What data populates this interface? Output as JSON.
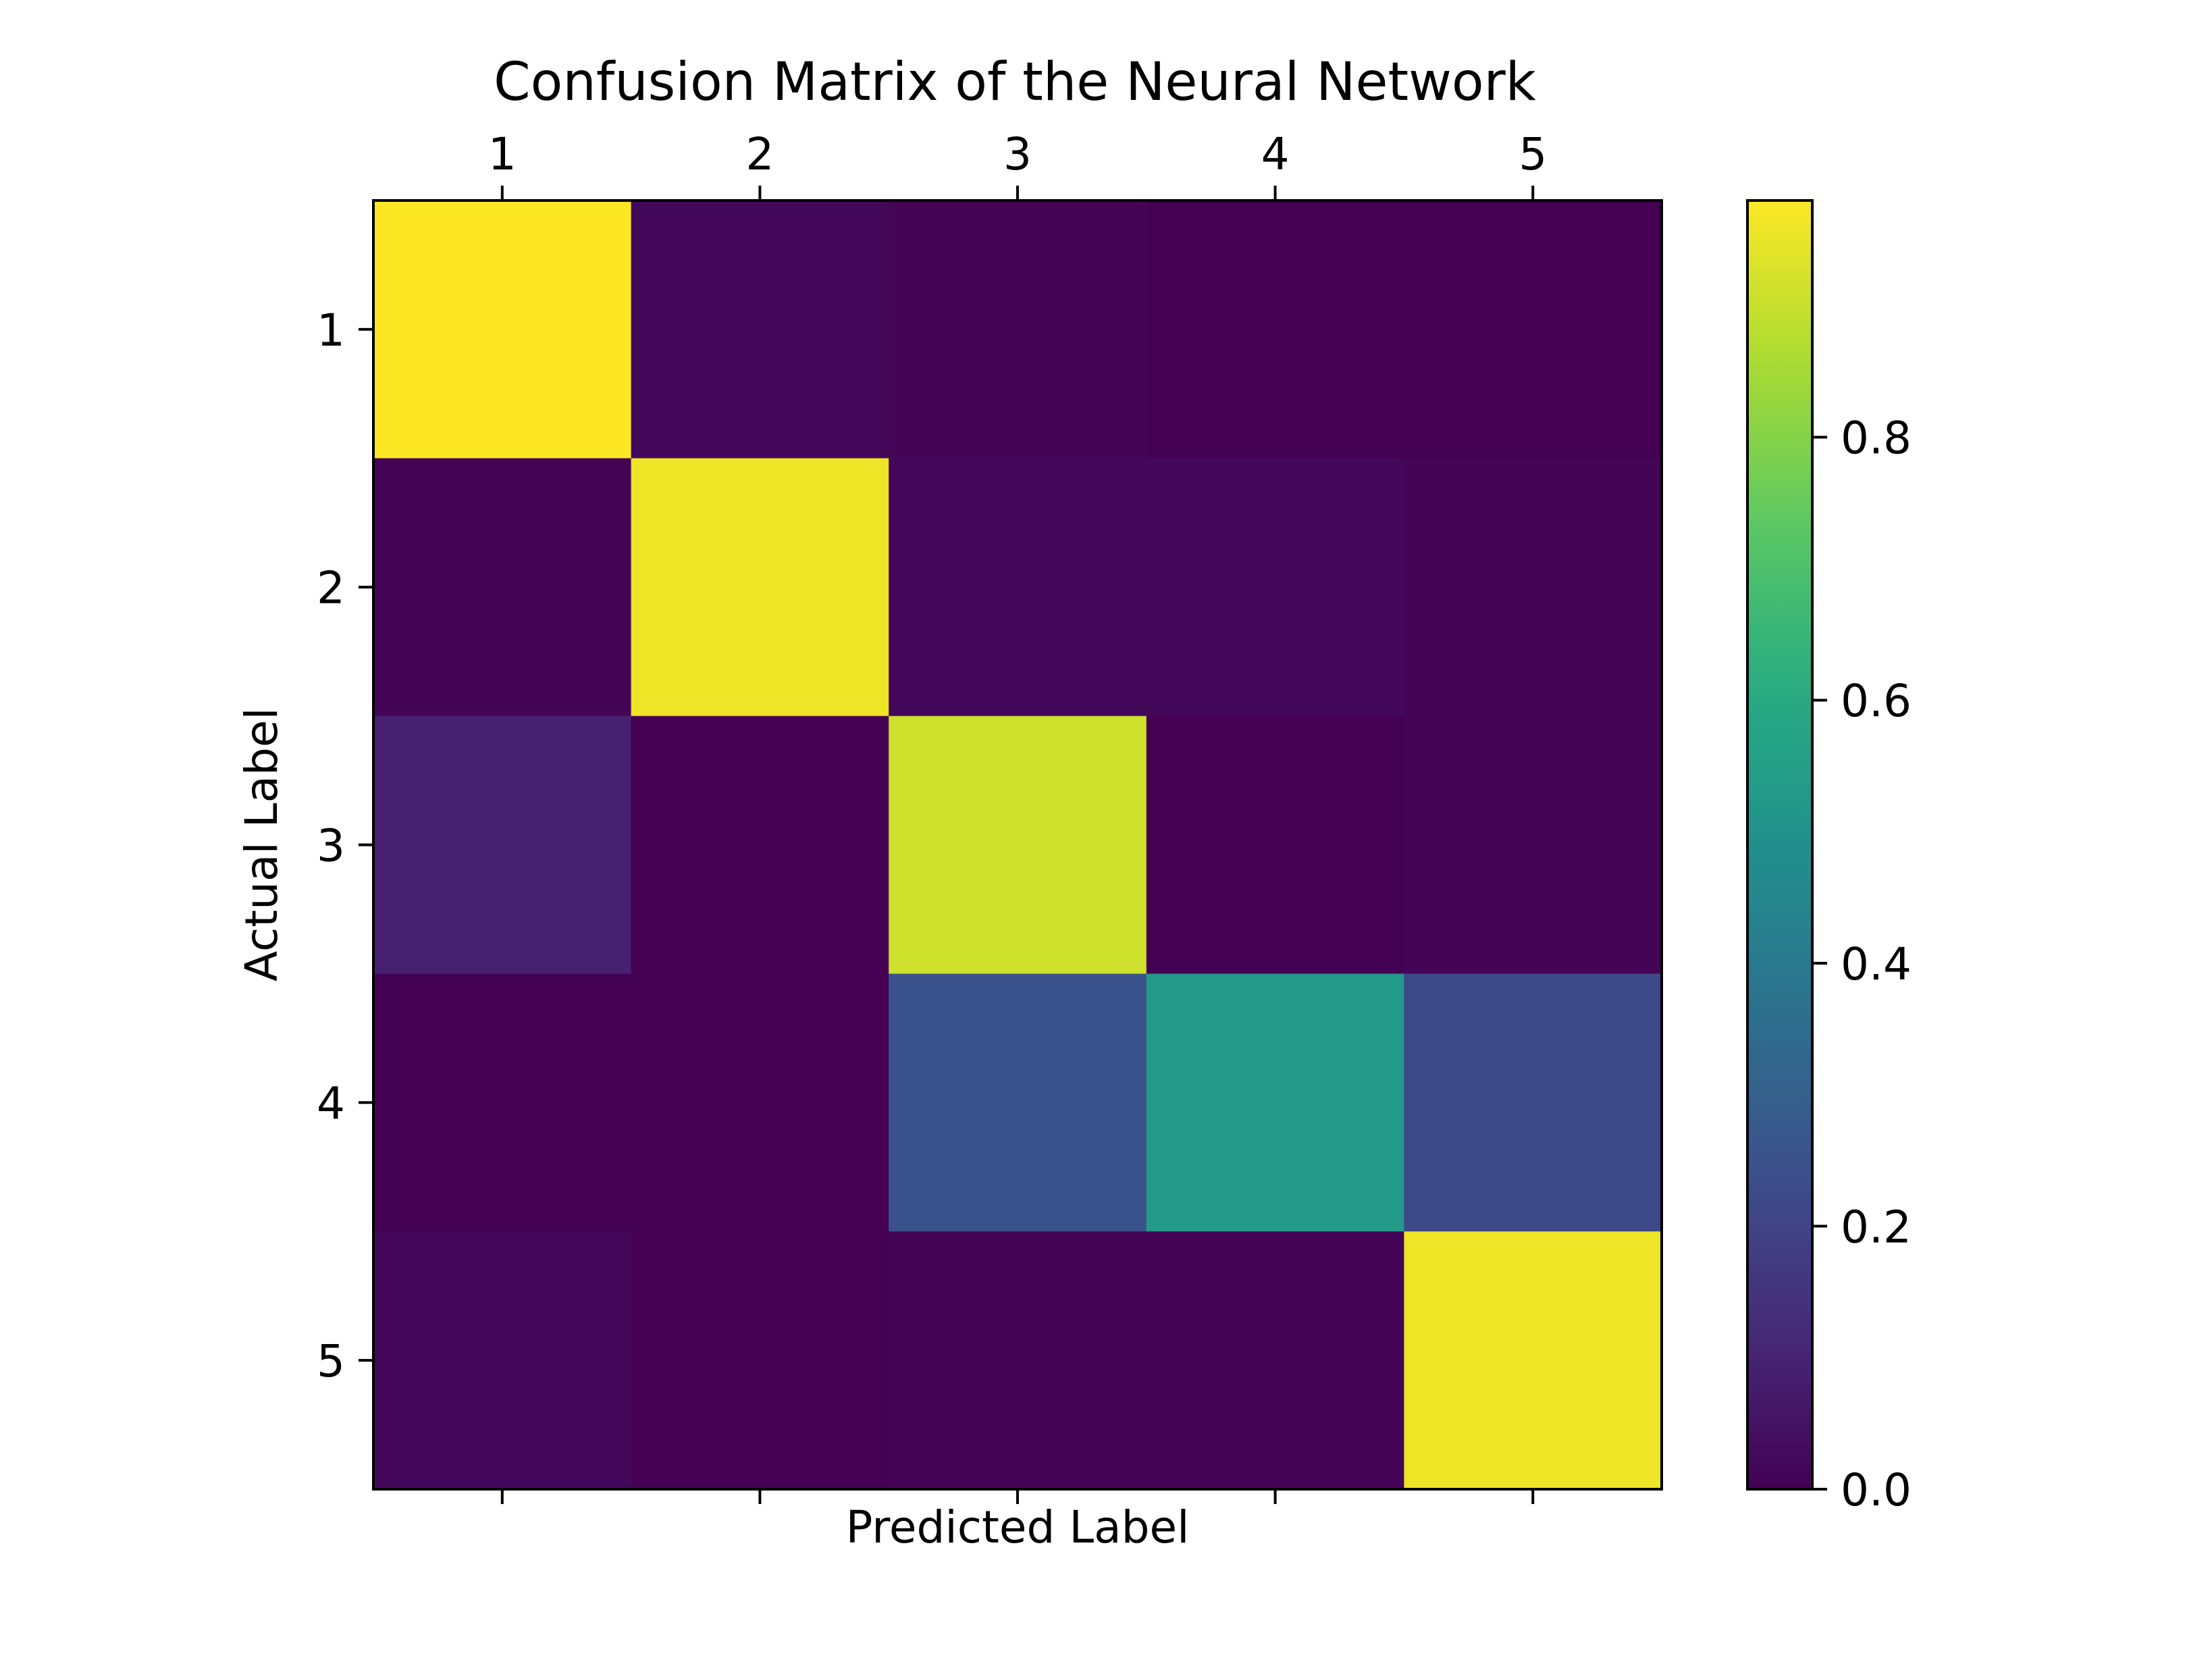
{
  "chart_data": {
    "type": "heatmap",
    "title": "Confusion Matrix of the Neural Network",
    "xlabel": "Predicted Label",
    "ylabel": "Actual Label",
    "x_categories": [
      "1",
      "2",
      "3",
      "4",
      "5"
    ],
    "y_categories": [
      "1",
      "2",
      "3",
      "4",
      "5"
    ],
    "values": [
      [
        0.98,
        0.02,
        0.01,
        0.0,
        0.0
      ],
      [
        0.01,
        0.96,
        0.02,
        0.02,
        0.01
      ],
      [
        0.09,
        0.0,
        0.91,
        0.0,
        0.01
      ],
      [
        0.0,
        0.0,
        0.25,
        0.53,
        0.22
      ],
      [
        0.02,
        0.0,
        0.01,
        0.01,
        0.96
      ]
    ],
    "colormap": "viridis",
    "colorbar": {
      "min": 0.0,
      "max": 0.98,
      "ticks": [
        0.0,
        0.2,
        0.4,
        0.6,
        0.8
      ],
      "tick_labels": [
        "0.0",
        "0.2",
        "0.4",
        "0.6",
        "0.8"
      ]
    },
    "x_ticks_position": "top",
    "grid": false
  }
}
